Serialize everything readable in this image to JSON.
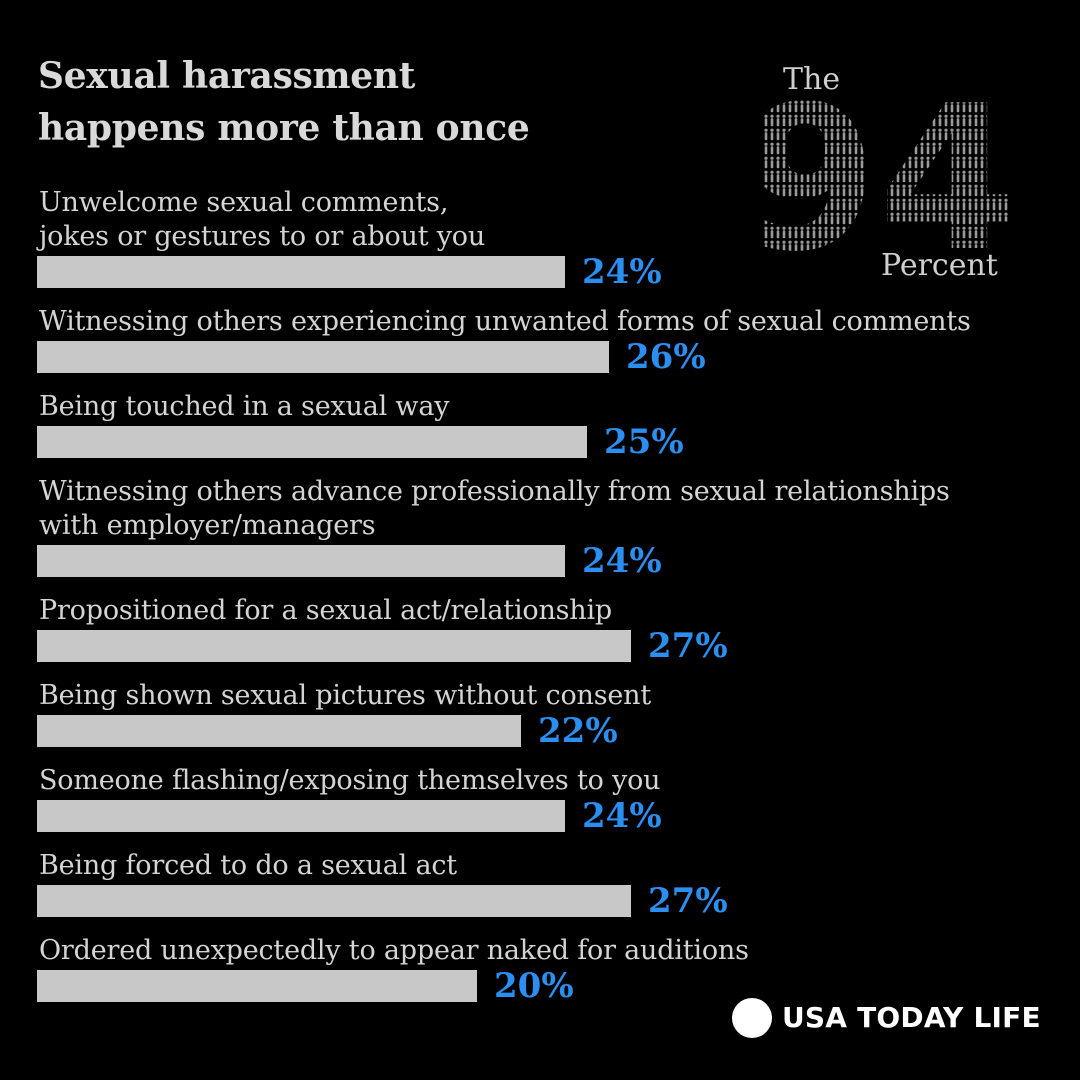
{
  "title_lines": [
    "Sexual harassment",
    "happens more than once"
  ],
  "logo": {
    "top_text": "The",
    "number_text": "94",
    "bottom_text": "Percent",
    "color": "#cfcfcf"
  },
  "brand": {
    "text": "USA TODAY LIFE",
    "color": "#ffffff"
  },
  "colors": {
    "bar": "#c8c8c8",
    "value": "#2a8ff0",
    "label": "#d4d4d4",
    "background": "#000000"
  },
  "chart_data": {
    "type": "bar",
    "orientation": "horizontal",
    "title": "Sexual harassment happens more than once",
    "unit": "%",
    "categories": [
      [
        "Unwelcome sexual comments,",
        "jokes or gestures to or about you"
      ],
      [
        "Witnessing others experiencing unwanted forms of sexual comments"
      ],
      [
        "Being touched in a sexual way"
      ],
      [
        "Witnessing others advance professionally from sexual relationships",
        "with employer/managers"
      ],
      [
        "Propositioned for a sexual act/relationship"
      ],
      [
        "Being shown sexual pictures without consent"
      ],
      [
        "Someone flashing/exposing themselves to you"
      ],
      [
        "Being forced to do a sexual act"
      ],
      [
        "Ordered unexpectedly to appear naked for auditions"
      ]
    ],
    "values": [
      24,
      26,
      25,
      24,
      27,
      22,
      24,
      27,
      20
    ],
    "value_labels": [
      "24%",
      "26%",
      "25%",
      "24%",
      "27%",
      "22%",
      "24%",
      "27%",
      "20%"
    ],
    "xlim": [
      0,
      27
    ],
    "grid": false,
    "legend": "none"
  }
}
